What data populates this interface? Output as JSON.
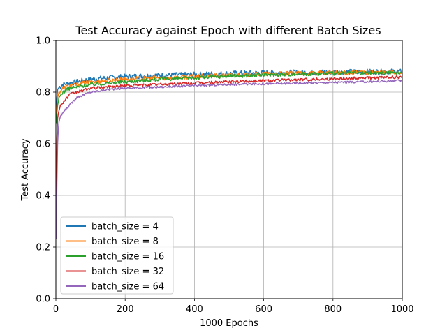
{
  "chart_data": {
    "type": "line",
    "title": "Test Accuracy against Epoch with different Batch Sizes",
    "xlabel": "1000 Epochs",
    "ylabel": "Test Accuracy",
    "xlim": [
      0,
      1000
    ],
    "ylim": [
      0.0,
      1.0
    ],
    "xticks": [
      "0",
      "200",
      "400",
      "600",
      "800",
      "1000"
    ],
    "yticks": [
      "0.0",
      "0.2",
      "0.4",
      "0.6",
      "0.8",
      "1.0"
    ],
    "grid": true,
    "legend_position": "lower-left",
    "series": [
      {
        "name": "batch_size = 4",
        "color": "#1f77b4",
        "x": [
          1,
          3,
          5,
          10,
          20,
          40,
          60,
          100,
          150,
          200,
          300,
          400,
          450,
          500,
          600,
          700,
          800,
          900,
          1000
        ],
        "values": [
          0.72,
          0.78,
          0.81,
          0.82,
          0.83,
          0.835,
          0.84,
          0.85,
          0.855,
          0.86,
          0.865,
          0.868,
          0.87,
          0.872,
          0.875,
          0.876,
          0.878,
          0.879,
          0.88
        ]
      },
      {
        "name": "batch_size = 8",
        "color": "#ff7f0e",
        "x": [
          1,
          3,
          5,
          10,
          20,
          40,
          60,
          100,
          150,
          200,
          300,
          400,
          500,
          600,
          700,
          800,
          900,
          1000
        ],
        "values": [
          0.7,
          0.75,
          0.78,
          0.8,
          0.815,
          0.825,
          0.83,
          0.84,
          0.845,
          0.85,
          0.855,
          0.86,
          0.865,
          0.87,
          0.872,
          0.875,
          0.876,
          0.877
        ]
      },
      {
        "name": "batch_size = 16",
        "color": "#2ca02c",
        "x": [
          1,
          3,
          5,
          10,
          20,
          40,
          60,
          100,
          150,
          200,
          300,
          400,
          500,
          600,
          700,
          800,
          900,
          1000
        ],
        "values": [
          0.68,
          0.72,
          0.75,
          0.78,
          0.8,
          0.815,
          0.82,
          0.83,
          0.835,
          0.84,
          0.85,
          0.855,
          0.862,
          0.866,
          0.87,
          0.872,
          0.874,
          0.876
        ]
      },
      {
        "name": "batch_size = 32",
        "color": "#d62728",
        "x": [
          1,
          3,
          5,
          10,
          20,
          40,
          60,
          100,
          150,
          200,
          300,
          400,
          500,
          600,
          700,
          800,
          900,
          1000
        ],
        "values": [
          0.4,
          0.62,
          0.7,
          0.74,
          0.76,
          0.79,
          0.8,
          0.815,
          0.82,
          0.825,
          0.83,
          0.835,
          0.84,
          0.845,
          0.848,
          0.852,
          0.855,
          0.858
        ]
      },
      {
        "name": "batch_size = 64",
        "color": "#9467bd",
        "x": [
          1,
          3,
          5,
          8,
          12,
          20,
          40,
          60,
          100,
          150,
          200,
          300,
          400,
          500,
          600,
          700,
          800,
          900,
          1000
        ],
        "values": [
          0.23,
          0.45,
          0.6,
          0.68,
          0.7,
          0.72,
          0.75,
          0.78,
          0.8,
          0.81,
          0.815,
          0.82,
          0.825,
          0.83,
          0.832,
          0.835,
          0.838,
          0.84,
          0.845
        ]
      }
    ]
  }
}
